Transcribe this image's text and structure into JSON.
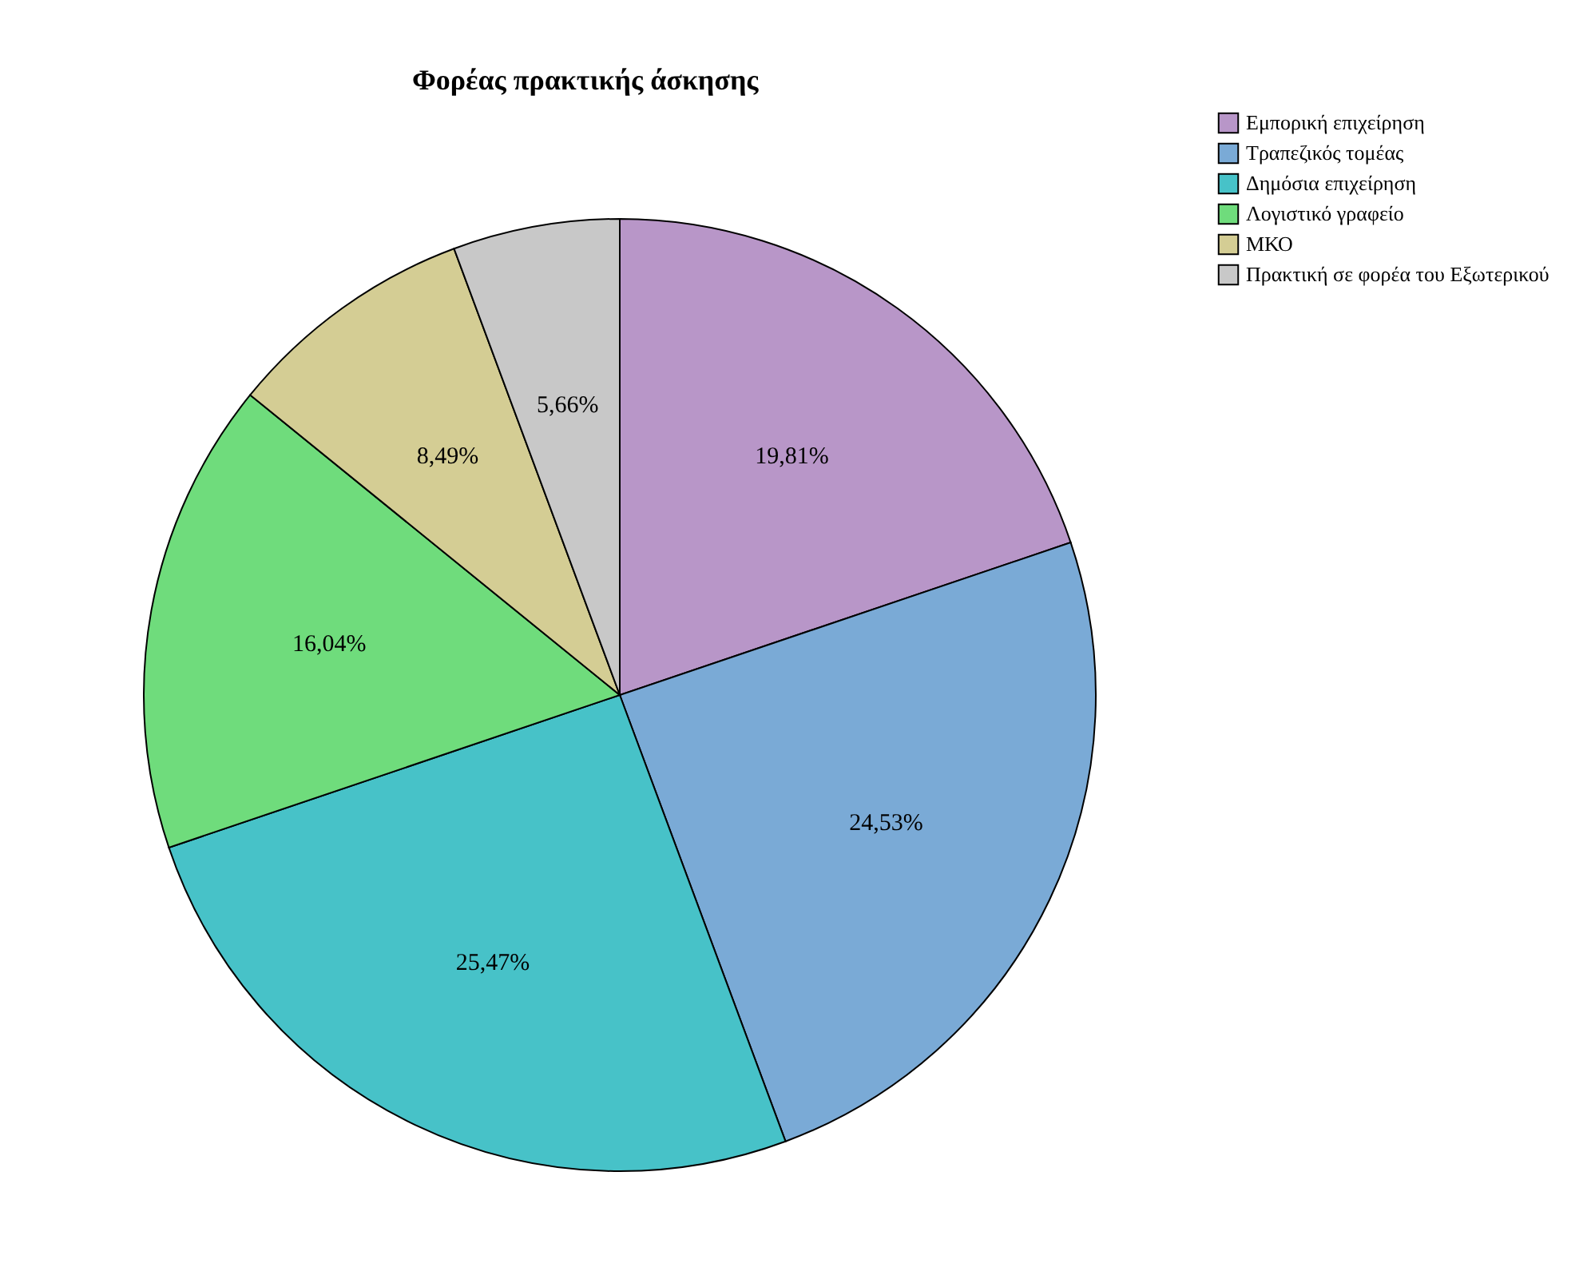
{
  "chart_data": {
    "type": "pie",
    "title": "Φορέας πρακτικής άσκησης",
    "categories": [
      "Εμπορική επιχείρηση",
      "Τραπεζικός τομέας",
      "Δημόσια επιχείρηση",
      "Λογιστικό γραφείο",
      "ΜΚΟ",
      "Πρακτική σε φορέα του Εξωτερικού"
    ],
    "values": [
      19.81,
      24.53,
      25.47,
      16.04,
      8.49,
      5.66
    ],
    "value_labels": [
      "19,81%",
      "24,53%",
      "25,47%",
      "16,04%",
      "8,49%",
      "5,66%"
    ],
    "colors": [
      "#b896c8",
      "#7aaad6",
      "#47c2c8",
      "#6fdc7c",
      "#d4cd94",
      "#c8c8c8"
    ],
    "legend": "top right"
  }
}
